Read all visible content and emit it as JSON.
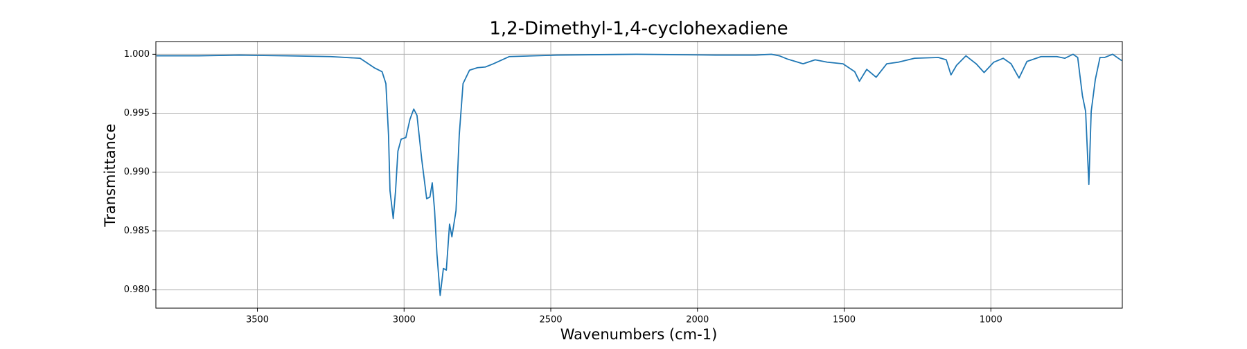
{
  "chart_data": {
    "type": "line",
    "title": "1,2-Dimethyl-1,4-cyclohexadiene",
    "x_label": "Wavenumbers (cm-1)",
    "y_label": "Transmittance",
    "xlim": [
      3846,
      552
    ],
    "ylim": [
      0.97845,
      1.00108
    ],
    "xticks": [
      3500,
      3000,
      2500,
      2000,
      1500,
      1000
    ],
    "yticks": [
      {
        "value": 0.98,
        "label": "0.980"
      },
      {
        "value": 0.985,
        "label": "0.985"
      },
      {
        "value": 0.99,
        "label": "0.990"
      },
      {
        "value": 0.995,
        "label": "0.995"
      },
      {
        "value": 1.0,
        "label": "1.000"
      }
    ],
    "grid": true,
    "series": [
      {
        "color": "#1f77b4",
        "x": [
          3844,
          3700,
          3562,
          3400,
          3250,
          3150,
          3102,
          3075,
          3062,
          3053,
          3048,
          3037,
          3029,
          3021,
          3010,
          2994,
          2980,
          2967,
          2956,
          2940,
          2923,
          2912,
          2904,
          2896,
          2888,
          2877,
          2866,
          2856,
          2845,
          2837,
          2823,
          2812,
          2799,
          2777,
          2750,
          2723,
          2696,
          2642,
          2479,
          2208,
          1937,
          1802,
          1748,
          1721,
          1694,
          1640,
          1599,
          1558,
          1504,
          1464,
          1448,
          1423,
          1391,
          1355,
          1315,
          1260,
          1179,
          1152,
          1136,
          1117,
          1085,
          1050,
          1023,
          990,
          958,
          931,
          904,
          877,
          829,
          775,
          748,
          720,
          704,
          688,
          677,
          666,
          658,
          644,
          628,
          612,
          598,
          585,
          554
        ],
        "values": [
          0.99987,
          0.99987,
          0.99993,
          0.99987,
          0.9998,
          0.99966,
          0.99886,
          0.99852,
          0.99751,
          0.99313,
          0.98842,
          0.98606,
          0.98842,
          0.99178,
          0.99279,
          0.99293,
          0.99448,
          0.99535,
          0.99481,
          0.99111,
          0.98774,
          0.98788,
          0.98909,
          0.98673,
          0.98303,
          0.97953,
          0.98182,
          0.98168,
          0.98559,
          0.98451,
          0.98673,
          0.99313,
          0.99751,
          0.99865,
          0.99886,
          0.99892,
          0.99919,
          0.9998,
          0.99993,
          1.0,
          0.99993,
          0.99993,
          1.0,
          0.99987,
          0.9996,
          0.99919,
          0.99953,
          0.99933,
          0.99919,
          0.99852,
          0.99771,
          0.99872,
          0.99805,
          0.99919,
          0.99933,
          0.99966,
          0.99973,
          0.99953,
          0.99825,
          0.99906,
          0.99987,
          0.99919,
          0.99845,
          0.99933,
          0.99966,
          0.99919,
          0.99798,
          0.99939,
          0.9998,
          0.9998,
          0.99966,
          1.0,
          0.99973,
          0.9965,
          0.99515,
          0.98896,
          0.99515,
          0.99785,
          0.99973,
          0.99973,
          0.99987,
          1.0,
          0.99946
        ]
      }
    ]
  }
}
